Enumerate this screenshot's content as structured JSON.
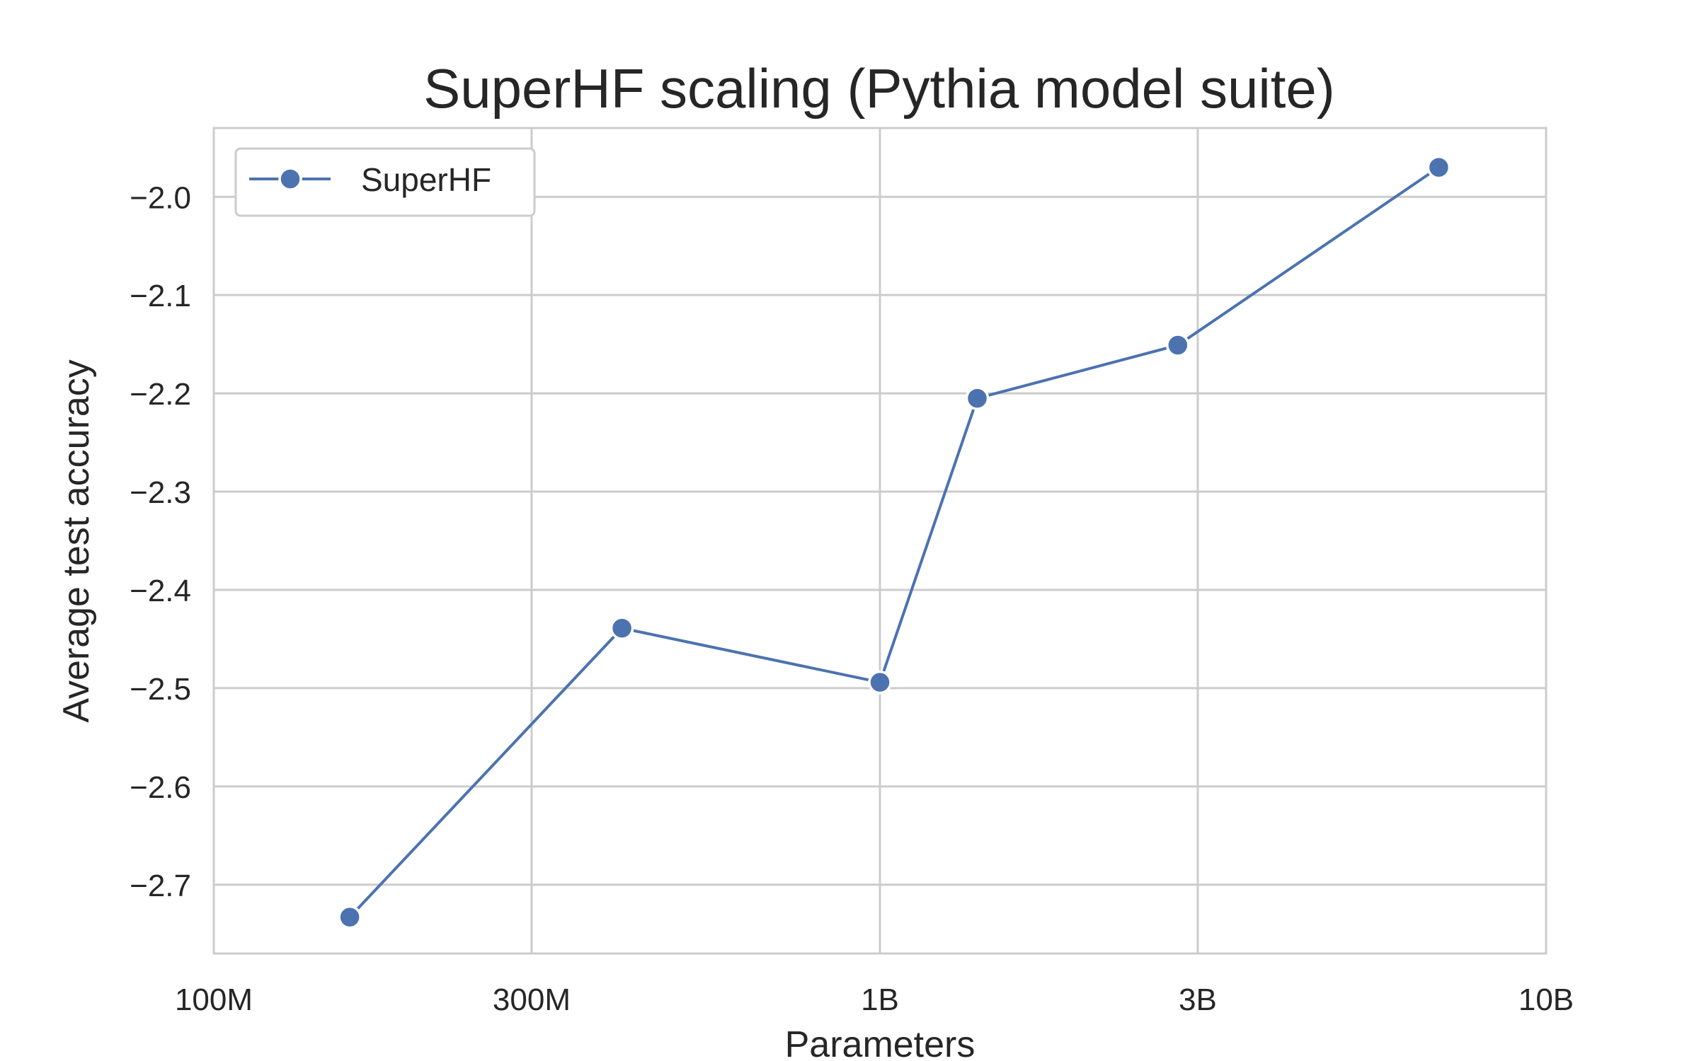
{
  "chart_data": {
    "type": "line",
    "title": "SuperHF scaling (Pythia model suite)",
    "xlabel": "Parameters",
    "ylabel": "Average test accuracy",
    "x_scale": "log",
    "xlim": [
      100000000,
      10000000000
    ],
    "ylim": [
      -2.77,
      -1.93
    ],
    "x_ticks": [
      {
        "value": 100000000,
        "label": "100M"
      },
      {
        "value": 300000000,
        "label": "300M"
      },
      {
        "value": 1000000000,
        "label": "1B"
      },
      {
        "value": 3000000000,
        "label": "3B"
      },
      {
        "value": 10000000000,
        "label": "10B"
      }
    ],
    "y_ticks": [
      {
        "value": -2.0,
        "label": "−2.0"
      },
      {
        "value": -2.1,
        "label": "−2.1"
      },
      {
        "value": -2.2,
        "label": "−2.2"
      },
      {
        "value": -2.3,
        "label": "−2.3"
      },
      {
        "value": -2.4,
        "label": "−2.4"
      },
      {
        "value": -2.5,
        "label": "−2.5"
      },
      {
        "value": -2.6,
        "label": "−2.6"
      },
      {
        "value": -2.7,
        "label": "−2.7"
      }
    ],
    "grid": true,
    "legend_position": "top-left",
    "series": [
      {
        "name": "SuperHF",
        "color": "#4c72b0",
        "marker": "circle",
        "x": [
          160000000,
          410000000,
          1000000000,
          1400000000,
          2800000000,
          6900000000
        ],
        "y": [
          -2.733,
          -2.439,
          -2.494,
          -2.205,
          -2.151,
          -1.97
        ]
      }
    ]
  }
}
